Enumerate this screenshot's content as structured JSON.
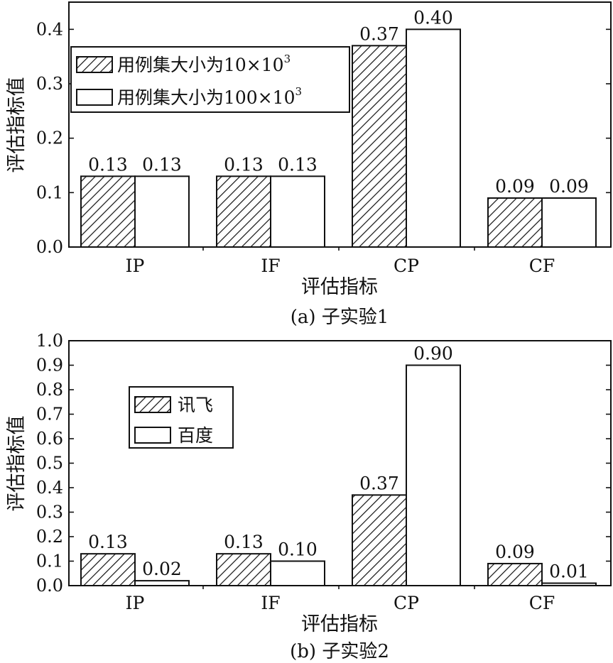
{
  "hatch_color": "#111111",
  "chart_data": [
    {
      "type": "bar",
      "caption": "(a) 子实验1",
      "xlabel": "评估指标",
      "ylabel": "评估指标值",
      "categories": [
        "IP",
        "IF",
        "CP",
        "CF"
      ],
      "ylim": [
        0,
        0.45
      ],
      "yticks": [
        0.0,
        0.1,
        0.2,
        0.3,
        0.4
      ],
      "ytick_labels": [
        "0.0",
        "0.1",
        "0.2",
        "0.3",
        "0.4"
      ],
      "legend_position": "upper-left",
      "series": [
        {
          "name": "用例集大小为10×10",
          "name_sup": "3",
          "fill": "hatch",
          "values": [
            0.13,
            0.13,
            0.37,
            0.09
          ],
          "labels": [
            "0.13",
            "0.13",
            "0.37",
            "0.09"
          ]
        },
        {
          "name": "用例集大小为100×10",
          "name_sup": "3",
          "fill": "#ffffff",
          "values": [
            0.13,
            0.13,
            0.4,
            0.09
          ],
          "labels": [
            "0.13",
            "0.13",
            "0.40",
            "0.09"
          ]
        }
      ]
    },
    {
      "type": "bar",
      "caption": "(b) 子实验2",
      "xlabel": "评估指标",
      "ylabel": "评估指标值",
      "categories": [
        "IP",
        "IF",
        "CP",
        "CF"
      ],
      "ylim": [
        0,
        1.0
      ],
      "yticks": [
        0.0,
        0.1,
        0.2,
        0.3,
        0.4,
        0.5,
        0.6,
        0.7,
        0.8,
        0.9,
        1.0
      ],
      "ytick_labels": [
        "0.0",
        "0.1",
        "0.2",
        "0.3",
        "0.4",
        "0.5",
        "0.6",
        "0.7",
        "0.8",
        "0.9",
        "1.0"
      ],
      "legend_position": "upper-left",
      "series": [
        {
          "name": "讯飞",
          "name_sup": "",
          "fill": "hatch",
          "values": [
            0.13,
            0.13,
            0.37,
            0.09
          ],
          "labels": [
            "0.13",
            "0.13",
            "0.37",
            "0.09"
          ]
        },
        {
          "name": "百度",
          "name_sup": "",
          "fill": "#ffffff",
          "values": [
            0.02,
            0.1,
            0.9,
            0.01
          ],
          "labels": [
            "0.02",
            "0.10",
            "0.90",
            "0.01"
          ]
        }
      ]
    }
  ]
}
